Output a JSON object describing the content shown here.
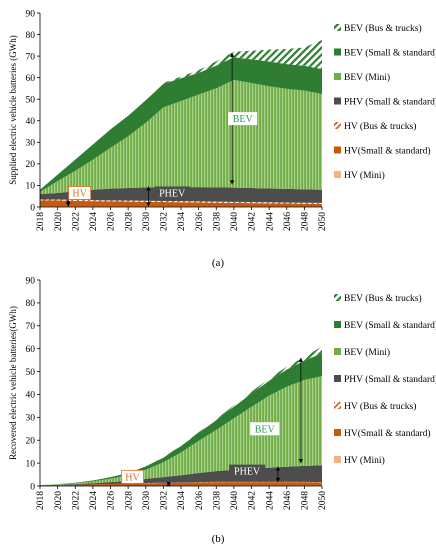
{
  "chart_data": [
    {
      "type": "area",
      "stacked": true,
      "caption": "(a)",
      "ylabel": "Supplied electric vehicle batteries (GWh)",
      "ylim": [
        0,
        90
      ],
      "yticks": [
        0,
        10,
        20,
        30,
        40,
        50,
        60,
        70,
        80,
        90
      ],
      "x": [
        2018,
        2020,
        2022,
        2024,
        2026,
        2028,
        2030,
        2032,
        2034,
        2036,
        2038,
        2040,
        2042,
        2044,
        2046,
        2048,
        2050
      ],
      "grid": false,
      "legend_placement": "right",
      "series": [
        {
          "name": "HV (Mini)",
          "color": "#f4b183",
          "pattern": "solid",
          "values": [
            0.2,
            0.2,
            0.2,
            0.2,
            0.2,
            0.2,
            0.2,
            0.2,
            0.2,
            0.2,
            0.2,
            0.2,
            0.2,
            0.2,
            0.2,
            0.2,
            0.2
          ]
        },
        {
          "name": "HV(Small & standard)",
          "color": "#c55a11",
          "pattern": "solid",
          "values": [
            2.8,
            2.8,
            2.6,
            2.5,
            2.4,
            2.3,
            2.2,
            2.1,
            2.0,
            1.9,
            1.8,
            1.7,
            1.6,
            1.5,
            1.4,
            1.3,
            1.2
          ]
        },
        {
          "name": "HV (Bus & trucks)",
          "color": "#c55a11",
          "pattern": "hatch",
          "values": [
            0.5,
            0.5,
            0.5,
            0.5,
            0.5,
            0.5,
            0.5,
            0.5,
            0.5,
            0.5,
            0.5,
            0.5,
            0.5,
            0.5,
            0.5,
            0.5,
            0.5
          ]
        },
        {
          "name": "PHV (Small & standard)",
          "color": "#4d4d4d",
          "pattern": "solid",
          "values": [
            2.5,
            3.0,
            4.0,
            4.8,
            5.4,
            5.8,
            6.2,
            6.4,
            6.5,
            6.6,
            6.6,
            6.6,
            6.5,
            6.4,
            6.3,
            6.2,
            6.1
          ]
        },
        {
          "name": "BEV (Mini)",
          "color": "#70ad47",
          "pattern": "vertical",
          "values": [
            1.0,
            5.5,
            9.5,
            14.0,
            19.0,
            24.0,
            30.0,
            37.0,
            40.0,
            43.0,
            46.0,
            50.0,
            48.7,
            47.4,
            46.4,
            45.8,
            44.5
          ]
        },
        {
          "name": "BEV (Small & standard)",
          "color": "#2e7d32",
          "pattern": "solid",
          "values": [
            1.0,
            3.0,
            5.2,
            7.0,
            8.5,
            9.5,
            10.4,
            11.0,
            10.5,
            10.0,
            10.5,
            10.5,
            11.0,
            11.5,
            11.5,
            11.5,
            11.5
          ]
        },
        {
          "name": "BEV (Bus & trucks)",
          "color": "#2e7d32",
          "pattern": "diagonal",
          "values": [
            0,
            0,
            0,
            0,
            0,
            0,
            0,
            0.3,
            0.8,
            1.3,
            2.0,
            2.5,
            4.0,
            5.5,
            7.0,
            8.5,
            13.5
          ]
        }
      ],
      "annotations": [
        {
          "text": "BEV",
          "x": 2041,
          "y": 41,
          "style": "green"
        },
        {
          "text": "PHEV",
          "x": 2033,
          "y": 6.5,
          "style": "dark"
        },
        {
          "text": "HV",
          "x": 2022.5,
          "y": 6.5,
          "style": "orange"
        }
      ],
      "arrows": [
        {
          "x": 2021.2,
          "y0": 0.3,
          "y1": 3.5
        },
        {
          "x": 2030.3,
          "y0": 0.3,
          "y1": 9.5
        },
        {
          "x": 2039.8,
          "y0": 10.5,
          "y1": 71.5
        }
      ]
    },
    {
      "type": "area",
      "stacked": true,
      "caption": "(b)",
      "ylabel": "Recovered electric vehicle batteries(GWh)",
      "ylim": [
        0,
        90
      ],
      "yticks": [
        0,
        10,
        20,
        30,
        40,
        50,
        60,
        70,
        80,
        90
      ],
      "x": [
        2018,
        2020,
        2022,
        2024,
        2026,
        2028,
        2030,
        2032,
        2034,
        2036,
        2038,
        2040,
        2042,
        2044,
        2046,
        2048,
        2050
      ],
      "grid": false,
      "legend_placement": "right",
      "series": [
        {
          "name": "HV (Mini)",
          "color": "#f4b183",
          "pattern": "solid",
          "values": [
            0,
            0,
            0,
            0,
            0,
            0,
            0,
            0,
            0,
            0.1,
            0.1,
            0.1,
            0.1,
            0.1,
            0.1,
            0.1,
            0.1
          ]
        },
        {
          "name": "HV(Small & standard)",
          "color": "#c55a11",
          "pattern": "solid",
          "values": [
            0.2,
            0.3,
            0.5,
            0.7,
            0.9,
            1.0,
            1.2,
            1.3,
            1.4,
            1.5,
            1.6,
            1.6,
            1.6,
            1.6,
            1.6,
            1.6,
            1.5
          ]
        },
        {
          "name": "HV (Bus & trucks)",
          "color": "#c55a11",
          "pattern": "hatch",
          "values": [
            0,
            0,
            0,
            0,
            0,
            0,
            0.1,
            0.1,
            0.1,
            0.1,
            0.1,
            0.1,
            0.1,
            0.1,
            0.1,
            0.1,
            0.1
          ]
        },
        {
          "name": "PHV (Small & standard)",
          "color": "#4d4d4d",
          "pattern": "solid",
          "values": [
            0.1,
            0.2,
            0.3,
            0.5,
            0.8,
            1.2,
            1.8,
            2.5,
            3.2,
            4.0,
            4.7,
            5.3,
            5.8,
            6.2,
            6.6,
            7.0,
            7.3
          ]
        },
        {
          "name": "BEV (Mini)",
          "color": "#70ad47",
          "pattern": "vertical",
          "values": [
            0.1,
            0.2,
            0.4,
            0.8,
            1.5,
            2.5,
            4.0,
            6.5,
            10.0,
            14.0,
            18.0,
            22.5,
            27.0,
            31.5,
            35.0,
            37.5,
            39.0
          ]
        },
        {
          "name": "BEV (Small & standard)",
          "color": "#2e7d32",
          "pattern": "solid",
          "values": [
            0,
            0.1,
            0.2,
            0.4,
            0.7,
            1.0,
            1.5,
            2.0,
            2.8,
            3.5,
            4.3,
            5.0,
            5.8,
            6.5,
            7.5,
            8.5,
            10.0
          ]
        },
        {
          "name": "BEV (Bus & trucks)",
          "color": "#2e7d32",
          "pattern": "diagonal",
          "values": [
            0,
            0,
            0,
            0,
            0,
            0,
            0,
            0.1,
            0.2,
            0.3,
            0.4,
            0.6,
            0.8,
            1.0,
            1.2,
            1.5,
            3.0
          ]
        }
      ],
      "annotations": [
        {
          "text": "BEV",
          "x": 2043.5,
          "y": 25,
          "style": "green"
        },
        {
          "text": "PHEV",
          "x": 2041.5,
          "y": 6.5,
          "style": "dark"
        },
        {
          "text": "HV",
          "x": 2028.5,
          "y": 4,
          "style": "orange"
        }
      ],
      "arrows": [
        {
          "x": 2032.6,
          "y0": 0,
          "y1": 1.6
        },
        {
          "x": 2045,
          "y0": 1.8,
          "y1": 8.5
        },
        {
          "x": 2047.6,
          "y0": 10,
          "y1": 56
        }
      ]
    }
  ],
  "legend": [
    {
      "label": "BEV (Bus & trucks)",
      "color": "#2e7d32",
      "pattern": "diagonal"
    },
    {
      "label": "BEV (Small & standard)",
      "color": "#2e7d32",
      "pattern": "solid"
    },
    {
      "label": "BEV (Mini)",
      "color": "#70ad47",
      "pattern": "solid"
    },
    {
      "label": "PHV (Small & standard)",
      "color": "#4d4d4d",
      "pattern": "solid"
    },
    {
      "label": "HV (Bus & trucks)",
      "color": "#c55a11",
      "pattern": "hatch"
    },
    {
      "label": "HV(Small & standard)",
      "color": "#c55a11",
      "pattern": "solid"
    },
    {
      "label": "HV (Mini)",
      "color": "#f4b183",
      "pattern": "solid"
    }
  ]
}
